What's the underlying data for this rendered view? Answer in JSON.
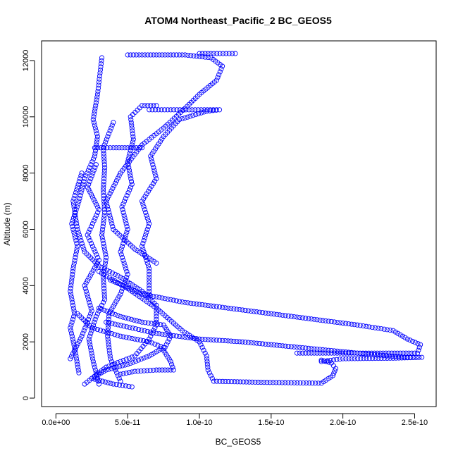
{
  "chart_data": {
    "type": "scatter",
    "title": "ATOM4 Northeast_Pacific_2 BC_GEOS5",
    "xlabel": "BC_GEOS5",
    "ylabel": "Altitude (m)",
    "xlim": [
      -1e-11,
      2.65e-10
    ],
    "ylim": [
      -300,
      12700
    ],
    "xticks": [
      0,
      5e-11,
      1e-10,
      1.5e-10,
      2e-10,
      2.5e-10
    ],
    "xtick_labels": [
      "0.0e+00",
      "5.0e-11",
      "1.0e-10",
      "1.5e-10",
      "2.0e-10",
      "2.5e-10"
    ],
    "yticks": [
      0,
      2000,
      4000,
      6000,
      8000,
      10000,
      12000
    ],
    "ytick_labels": [
      "0",
      "2000",
      "4000",
      "6000",
      "8000",
      "10000",
      "12000"
    ],
    "marker": "open-circle",
    "color": "#0000ff",
    "grid": false,
    "series": [
      {
        "values": [
          [
            1.6e-11,
            900
          ],
          [
            1.3e-11,
            1800
          ],
          [
            1e-11,
            2500
          ],
          [
            1.3e-11,
            3000
          ],
          [
            1e-11,
            3800
          ],
          [
            1.2e-11,
            4600
          ],
          [
            1.5e-11,
            5400
          ],
          [
            1.1e-11,
            6200
          ],
          [
            1.6e-11,
            7000
          ],
          [
            2e-11,
            7800
          ],
          [
            2.7e-11,
            8600
          ],
          [
            2.9e-11,
            9300
          ],
          [
            2.6e-11,
            9900
          ],
          [
            2.9e-11,
            10800
          ],
          [
            3.2e-11,
            12100
          ]
        ]
      },
      {
        "values": [
          [
            3e-11,
            500
          ],
          [
            2.6e-11,
            1300
          ],
          [
            2.3e-11,
            2100
          ],
          [
            2.8e-11,
            2900
          ],
          [
            3.4e-11,
            3500
          ],
          [
            3.3e-11,
            4300
          ],
          [
            3.5e-11,
            5000
          ],
          [
            3.2e-11,
            5800
          ],
          [
            3.4e-11,
            6600
          ],
          [
            3.3e-11,
            7400
          ],
          [
            3.4e-11,
            8200
          ],
          [
            3.3e-11,
            8900
          ],
          [
            4e-11,
            9800
          ]
        ]
      },
      {
        "values": [
          [
            4.5e-11,
            600
          ],
          [
            3.8e-11,
            1400
          ],
          [
            3.6e-11,
            2200
          ],
          [
            3.7e-11,
            3000
          ],
          [
            4.5e-11,
            3700
          ],
          [
            5e-11,
            4400
          ],
          [
            4.5e-11,
            5200
          ],
          [
            5e-11,
            6000
          ],
          [
            4.6e-11,
            6800
          ],
          [
            5.3e-11,
            7600
          ],
          [
            5e-11,
            8400
          ],
          [
            5.4e-11,
            9200
          ],
          [
            5.2e-11,
            10000
          ],
          [
            6e-11,
            10400
          ],
          [
            7e-11,
            10400
          ]
        ]
      },
      {
        "values": [
          [
            6.5e-11,
            3600
          ],
          [
            6.5e-11,
            4600
          ],
          [
            6e-11,
            5400
          ],
          [
            6.5e-11,
            6200
          ],
          [
            6e-11,
            7000
          ],
          [
            7e-11,
            7800
          ],
          [
            6.6e-11,
            8600
          ],
          [
            7.5e-11,
            9300
          ],
          [
            8.6e-11,
            9900
          ],
          [
            1.05e-10,
            10200
          ],
          [
            1.14e-10,
            10250
          ],
          [
            8e-11,
            10250
          ],
          [
            6.5e-11,
            10250
          ]
        ]
      },
      {
        "values": [
          [
            7e-11,
            4800
          ],
          [
            5.5e-11,
            5300
          ],
          [
            4e-11,
            6000
          ],
          [
            3.5e-11,
            7000
          ],
          [
            4.5e-11,
            8000
          ],
          [
            6e-11,
            9000
          ],
          [
            7.5e-11,
            9600
          ],
          [
            9e-11,
            10300
          ],
          [
            1e-10,
            10800
          ],
          [
            1.12e-10,
            11300
          ],
          [
            1.16e-10,
            11800
          ],
          [
            1.08e-10,
            12100
          ],
          [
            9e-11,
            12200
          ],
          [
            7e-11,
            12200
          ],
          [
            5e-11,
            12200
          ]
        ]
      },
      {
        "values": [
          [
            1e-10,
            12250
          ],
          [
            1.1e-10,
            12250
          ],
          [
            1.25e-10,
            12250
          ]
        ]
      },
      {
        "values": [
          [
            2.7e-11,
            8900
          ],
          [
            4e-11,
            8900
          ],
          [
            5e-11,
            8900
          ],
          [
            6e-11,
            8900
          ]
        ]
      },
      {
        "values": [
          [
            3.8e-11,
            4200
          ],
          [
            6e-11,
            3700
          ],
          [
            9e-11,
            3400
          ],
          [
            1.2e-10,
            3200
          ],
          [
            1.5e-10,
            3000
          ],
          [
            1.8e-10,
            2800
          ],
          [
            2.1e-10,
            2600
          ],
          [
            2.35e-10,
            2400
          ],
          [
            2.45e-10,
            2100
          ],
          [
            2.54e-10,
            1900
          ],
          [
            2.52e-10,
            1600
          ],
          [
            2.2e-10,
            1600
          ],
          [
            1.9e-10,
            1600
          ],
          [
            1.68e-10,
            1600
          ]
        ]
      },
      {
        "values": [
          [
            3.5e-11,
            2700
          ],
          [
            7e-11,
            2300
          ],
          [
            1e-10,
            2100
          ],
          [
            1.3e-10,
            2000
          ],
          [
            1.6e-10,
            1850
          ],
          [
            1.9e-10,
            1700
          ],
          [
            2.2e-10,
            1550
          ],
          [
            2.45e-10,
            1450
          ],
          [
            2.55e-10,
            1450
          ],
          [
            2.35e-10,
            1420
          ],
          [
            2e-10,
            1400
          ],
          [
            1.85e-10,
            1300
          ]
        ]
      },
      {
        "values": [
          [
            3e-11,
            4500
          ],
          [
            5e-11,
            3900
          ],
          [
            7e-11,
            3200
          ],
          [
            8.8e-11,
            2400
          ],
          [
            1e-10,
            2000
          ],
          [
            1.05e-10,
            1500
          ],
          [
            1.06e-10,
            1000
          ],
          [
            1.1e-10,
            600
          ],
          [
            1.45e-10,
            560
          ],
          [
            1.85e-10,
            530
          ],
          [
            1.93e-10,
            800
          ],
          [
            1.95e-10,
            1050
          ],
          [
            1.92e-10,
            1250
          ],
          [
            1.85e-10,
            1350
          ]
        ]
      },
      {
        "values": [
          [
            3e-11,
            3200
          ],
          [
            4.5e-11,
            2900
          ],
          [
            6e-11,
            2700
          ],
          [
            7.5e-11,
            2600
          ],
          [
            8e-11,
            2200
          ],
          [
            7.5e-11,
            1700
          ],
          [
            8e-11,
            1300
          ],
          [
            8.2e-11,
            1000
          ],
          [
            7e-11,
            1000
          ],
          [
            5.5e-11,
            950
          ],
          [
            4.5e-11,
            850
          ]
        ]
      },
      {
        "values": [
          [
            1.5e-11,
            3000
          ],
          [
            2.5e-11,
            2500
          ],
          [
            4.5e-11,
            2200
          ],
          [
            6.5e-11,
            2000
          ],
          [
            7.5e-11,
            1800
          ],
          [
            6.5e-11,
            1500
          ],
          [
            5e-11,
            1200
          ],
          [
            3.5e-11,
            1000
          ],
          [
            2.5e-11,
            700
          ],
          [
            4e-11,
            500
          ],
          [
            5.3e-11,
            400
          ]
        ]
      },
      {
        "values": [
          [
            2e-11,
            500
          ],
          [
            3.5e-11,
            1100
          ],
          [
            5.5e-11,
            1500
          ],
          [
            6.5e-11,
            2100
          ],
          [
            7e-11,
            2600
          ],
          [
            7e-11,
            3300
          ],
          [
            6e-11,
            3800
          ],
          [
            4.5e-11,
            4300
          ],
          [
            3e-11,
            4700
          ],
          [
            2e-11,
            5200
          ],
          [
            1.5e-11,
            6000
          ],
          [
            1.2e-11,
            7000
          ],
          [
            1.8e-11,
            8000
          ]
        ]
      },
      {
        "values": [
          [
            1e-11,
            1400
          ],
          [
            1.8e-11,
            2200
          ],
          [
            2.5e-11,
            3100
          ],
          [
            2e-11,
            4000
          ],
          [
            3e-11,
            4900
          ],
          [
            2.2e-11,
            5800
          ],
          [
            3e-11,
            6700
          ],
          [
            2.2e-11,
            7500
          ],
          [
            2.8e-11,
            8300
          ]
        ]
      }
    ]
  }
}
